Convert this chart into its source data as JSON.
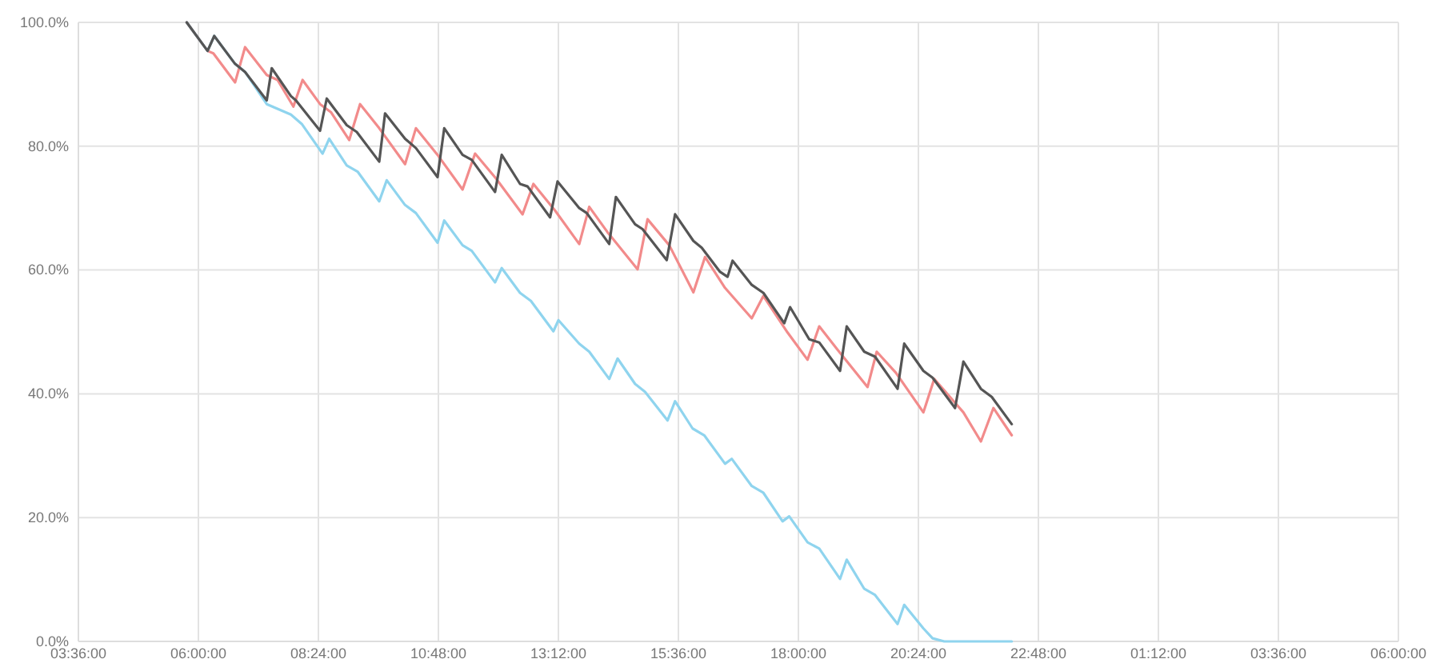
{
  "chart_data": {
    "type": "line",
    "xlim": [
      "2000-01-01T03:36",
      "2000-01-02T06:00"
    ],
    "ylim": [
      0,
      100
    ],
    "xticks": [
      {
        "value": "2000-01-01T03:36",
        "label": "03:36:00"
      },
      {
        "value": "2000-01-01T06:00",
        "label": "06:00:00"
      },
      {
        "value": "2000-01-01T08:24",
        "label": "08:24:00"
      },
      {
        "value": "2000-01-01T10:48",
        "label": "10:48:00"
      },
      {
        "value": "2000-01-01T13:12",
        "label": "13:12:00"
      },
      {
        "value": "2000-01-01T15:36",
        "label": "15:36:00"
      },
      {
        "value": "2000-01-01T18:00",
        "label": "18:00:00"
      },
      {
        "value": "2000-01-01T20:24",
        "label": "20:24:00"
      },
      {
        "value": "2000-01-01T22:48",
        "label": "22:48:00"
      },
      {
        "value": "2000-01-02T01:12",
        "label": "01:12:00"
      },
      {
        "value": "2000-01-02T03:36",
        "label": "03:36:00"
      },
      {
        "value": "2000-01-02T06:00",
        "label": "06:00:00"
      }
    ],
    "yticks": [
      {
        "value": 0,
        "label": "0.0%"
      },
      {
        "value": 20,
        "label": "20.0%"
      },
      {
        "value": 40,
        "label": "40.0%"
      },
      {
        "value": 60,
        "label": "60.0%"
      },
      {
        "value": 80,
        "label": "80.0%"
      },
      {
        "value": 100,
        "label": "100.0%"
      }
    ],
    "grid": true,
    "marker": "none",
    "line_style": "solid",
    "series": [
      {
        "color": "#f28b8b",
        "x": [
          "2000-01-01T05:46",
          "2000-01-01T06:11",
          "2000-01-01T06:18",
          "2000-01-01T06:44",
          "2000-01-01T06:56",
          "2000-01-01T07:22",
          "2000-01-01T07:35",
          "2000-01-01T07:54",
          "2000-01-01T08:05",
          "2000-01-01T08:26",
          "2000-01-01T08:39",
          "2000-01-01T09:01",
          "2000-01-01T09:14",
          "2000-01-01T09:37",
          "2000-01-01T10:08",
          "2000-01-01T10:21",
          "2000-01-01T10:47",
          "2000-01-01T11:17",
          "2000-01-01T11:32",
          "2000-01-01T11:57",
          "2000-01-01T12:29",
          "2000-01-01T12:42",
          "2000-01-01T13:08",
          "2000-01-01T13:37",
          "2000-01-01T13:49",
          "2000-01-01T14:11",
          "2000-01-01T14:47",
          "2000-01-01T14:59",
          "2000-01-01T15:25",
          "2000-01-01T15:54",
          "2000-01-01T16:08",
          "2000-01-01T16:32",
          "2000-01-01T17:04",
          "2000-01-01T17:18",
          "2000-01-01T17:47",
          "2000-01-01T18:11",
          "2000-01-01T18:25",
          "2000-01-01T18:46",
          "2000-01-01T19:23",
          "2000-01-01T19:34",
          "2000-01-01T19:57",
          "2000-01-01T20:30",
          "2000-01-01T20:43",
          "2000-01-01T21:18",
          "2000-01-01T21:39",
          "2000-01-01T21:54",
          "2000-01-01T22:16"
        ],
        "values": [
          100,
          95.4,
          95,
          90.3,
          96,
          91.5,
          90.7,
          86.4,
          90.7,
          86.8,
          85.5,
          81,
          86.8,
          82.9,
          77.1,
          82.9,
          78.6,
          73,
          78.8,
          74.8,
          69,
          73.9,
          69.6,
          64.2,
          70.2,
          66.1,
          60.1,
          68.2,
          64,
          56.4,
          62.1,
          57.1,
          52.2,
          55.8,
          49.9,
          45.5,
          50.9,
          47.3,
          41.1,
          46.8,
          43.4,
          37,
          42.4,
          37,
          32.3,
          37.7,
          33.3
        ]
      },
      {
        "color": "#8fd4ee",
        "x": [
          "2000-01-01T05:46",
          "2000-01-01T06:11",
          "2000-01-01T06:19",
          "2000-01-01T06:44",
          "2000-01-01T06:56",
          "2000-01-01T07:22",
          "2000-01-01T07:51",
          "2000-01-01T08:04",
          "2000-01-01T08:29",
          "2000-01-01T08:37",
          "2000-01-01T08:58",
          "2000-01-01T09:11",
          "2000-01-01T09:37",
          "2000-01-01T09:46",
          "2000-01-01T10:08",
          "2000-01-01T10:21",
          "2000-01-01T10:47",
          "2000-01-01T10:55",
          "2000-01-01T11:17",
          "2000-01-01T11:28",
          "2000-01-01T11:56",
          "2000-01-01T12:04",
          "2000-01-01T12:26",
          "2000-01-01T12:39",
          "2000-01-01T13:06",
          "2000-01-01T13:12",
          "2000-01-01T13:37",
          "2000-01-01T13:49",
          "2000-01-01T14:13",
          "2000-01-01T14:23",
          "2000-01-01T14:44",
          "2000-01-01T14:56",
          "2000-01-01T15:23",
          "2000-01-01T15:32",
          "2000-01-01T15:53",
          "2000-01-01T16:07",
          "2000-01-01T16:32",
          "2000-01-01T16:40",
          "2000-01-01T17:04",
          "2000-01-01T17:18",
          "2000-01-01T17:41",
          "2000-01-01T17:49",
          "2000-01-01T18:11",
          "2000-01-01T18:25",
          "2000-01-01T18:50",
          "2000-01-01T18:58",
          "2000-01-01T19:19",
          "2000-01-01T19:32",
          "2000-01-01T19:59",
          "2000-01-01T20:07",
          "2000-01-01T20:30",
          "2000-01-01T20:41",
          "2000-01-01T20:55",
          "2000-01-01T22:16"
        ],
        "values": [
          100,
          95.4,
          97.8,
          93.3,
          92,
          86.8,
          85.1,
          83.6,
          78.8,
          81.2,
          76.9,
          75.9,
          71.1,
          74.5,
          70.5,
          69.2,
          64.4,
          68,
          64,
          63.1,
          58,
          60.3,
          56.3,
          55,
          50.1,
          51.9,
          48.1,
          46.8,
          42.4,
          45.7,
          41.6,
          40.3,
          35.7,
          38.8,
          34.4,
          33.3,
          28.7,
          29.5,
          25.1,
          24,
          19.4,
          20.2,
          16,
          15,
          10.1,
          13.2,
          8.5,
          7.5,
          2.8,
          5.9,
          2.1,
          0.5,
          0,
          0
        ]
      },
      {
        "color": "#555555",
        "x": [
          "2000-01-01T05:46",
          "2000-01-01T06:11",
          "2000-01-01T06:19",
          "2000-01-01T06:44",
          "2000-01-01T06:56",
          "2000-01-01T07:22",
          "2000-01-01T07:28",
          "2000-01-01T07:51",
          "2000-01-01T07:57",
          "2000-01-01T08:26",
          "2000-01-01T08:34",
          "2000-01-01T08:58",
          "2000-01-01T09:10",
          "2000-01-01T09:37",
          "2000-01-01T09:44",
          "2000-01-01T10:08",
          "2000-01-01T10:21",
          "2000-01-01T10:47",
          "2000-01-01T10:55",
          "2000-01-01T11:17",
          "2000-01-01T11:28",
          "2000-01-01T11:56",
          "2000-01-01T12:04",
          "2000-01-01T12:26",
          "2000-01-01T12:35",
          "2000-01-01T13:02",
          "2000-01-01T13:11",
          "2000-01-01T13:37",
          "2000-01-01T13:46",
          "2000-01-01T14:13",
          "2000-01-01T14:21",
          "2000-01-01T14:44",
          "2000-01-01T14:53",
          "2000-01-01T15:22",
          "2000-01-01T15:32",
          "2000-01-01T15:54",
          "2000-01-01T16:04",
          "2000-01-01T16:26",
          "2000-01-01T16:35",
          "2000-01-01T16:41",
          "2000-01-01T17:04",
          "2000-01-01T17:18",
          "2000-01-01T17:43",
          "2000-01-01T17:50",
          "2000-01-01T18:13",
          "2000-01-01T18:25",
          "2000-01-01T18:50",
          "2000-01-01T18:58",
          "2000-01-01T19:19",
          "2000-01-01T19:32",
          "2000-01-01T19:59",
          "2000-01-01T20:07",
          "2000-01-01T20:30",
          "2000-01-01T20:41",
          "2000-01-01T21:08",
          "2000-01-01T21:18",
          "2000-01-01T21:39",
          "2000-01-01T21:52",
          "2000-01-01T22:16"
        ],
        "values": [
          100,
          95.4,
          97.8,
          93.3,
          92,
          87.4,
          92.6,
          88.1,
          87.4,
          82.5,
          87.7,
          83.4,
          82.3,
          77.5,
          85.3,
          81.2,
          79.7,
          75,
          82.9,
          78.6,
          77.8,
          72.6,
          78.6,
          73.9,
          73.5,
          68.5,
          74.3,
          70,
          69.2,
          64.2,
          71.8,
          67.4,
          66.6,
          61.6,
          69,
          64.7,
          63.6,
          59.7,
          58.9,
          61.5,
          57.6,
          56.3,
          51.4,
          54,
          48.8,
          48.3,
          43.7,
          50.9,
          46.8,
          46,
          40.8,
          48.1,
          43.7,
          42.6,
          37.7,
          45.2,
          40.8,
          39.5,
          35.1
        ]
      }
    ]
  }
}
